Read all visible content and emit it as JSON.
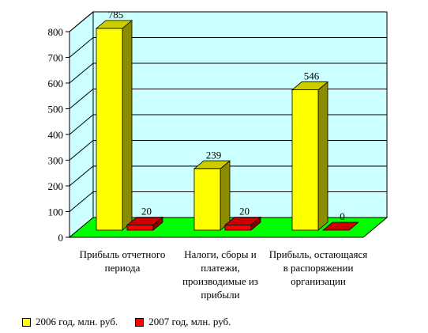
{
  "chart_data": {
    "type": "bar",
    "categories": [
      [
        "Прибыль отчетного",
        "периода"
      ],
      [
        "Налоги, сборы и",
        "платежи,",
        "производимые из",
        "прибыли"
      ],
      [
        "Прибыль, остающаяся",
        "в распоряжении",
        "организации"
      ]
    ],
    "series": [
      {
        "name": "2006 год, млн. руб.",
        "values": [
          785,
          239,
          546
        ],
        "color": "#ffff00"
      },
      {
        "name": "2007 год, млн. руб.",
        "values": [
          20,
          20,
          0
        ],
        "color": "#ff0000"
      }
    ],
    "ylim": [
      0,
      800
    ],
    "yticks": [
      0,
      100,
      200,
      300,
      400,
      500,
      600,
      700,
      800
    ],
    "grid": true,
    "legend_position": "bottom-left",
    "wall_color": "#ccffff",
    "floor_color": "#00ff00"
  }
}
